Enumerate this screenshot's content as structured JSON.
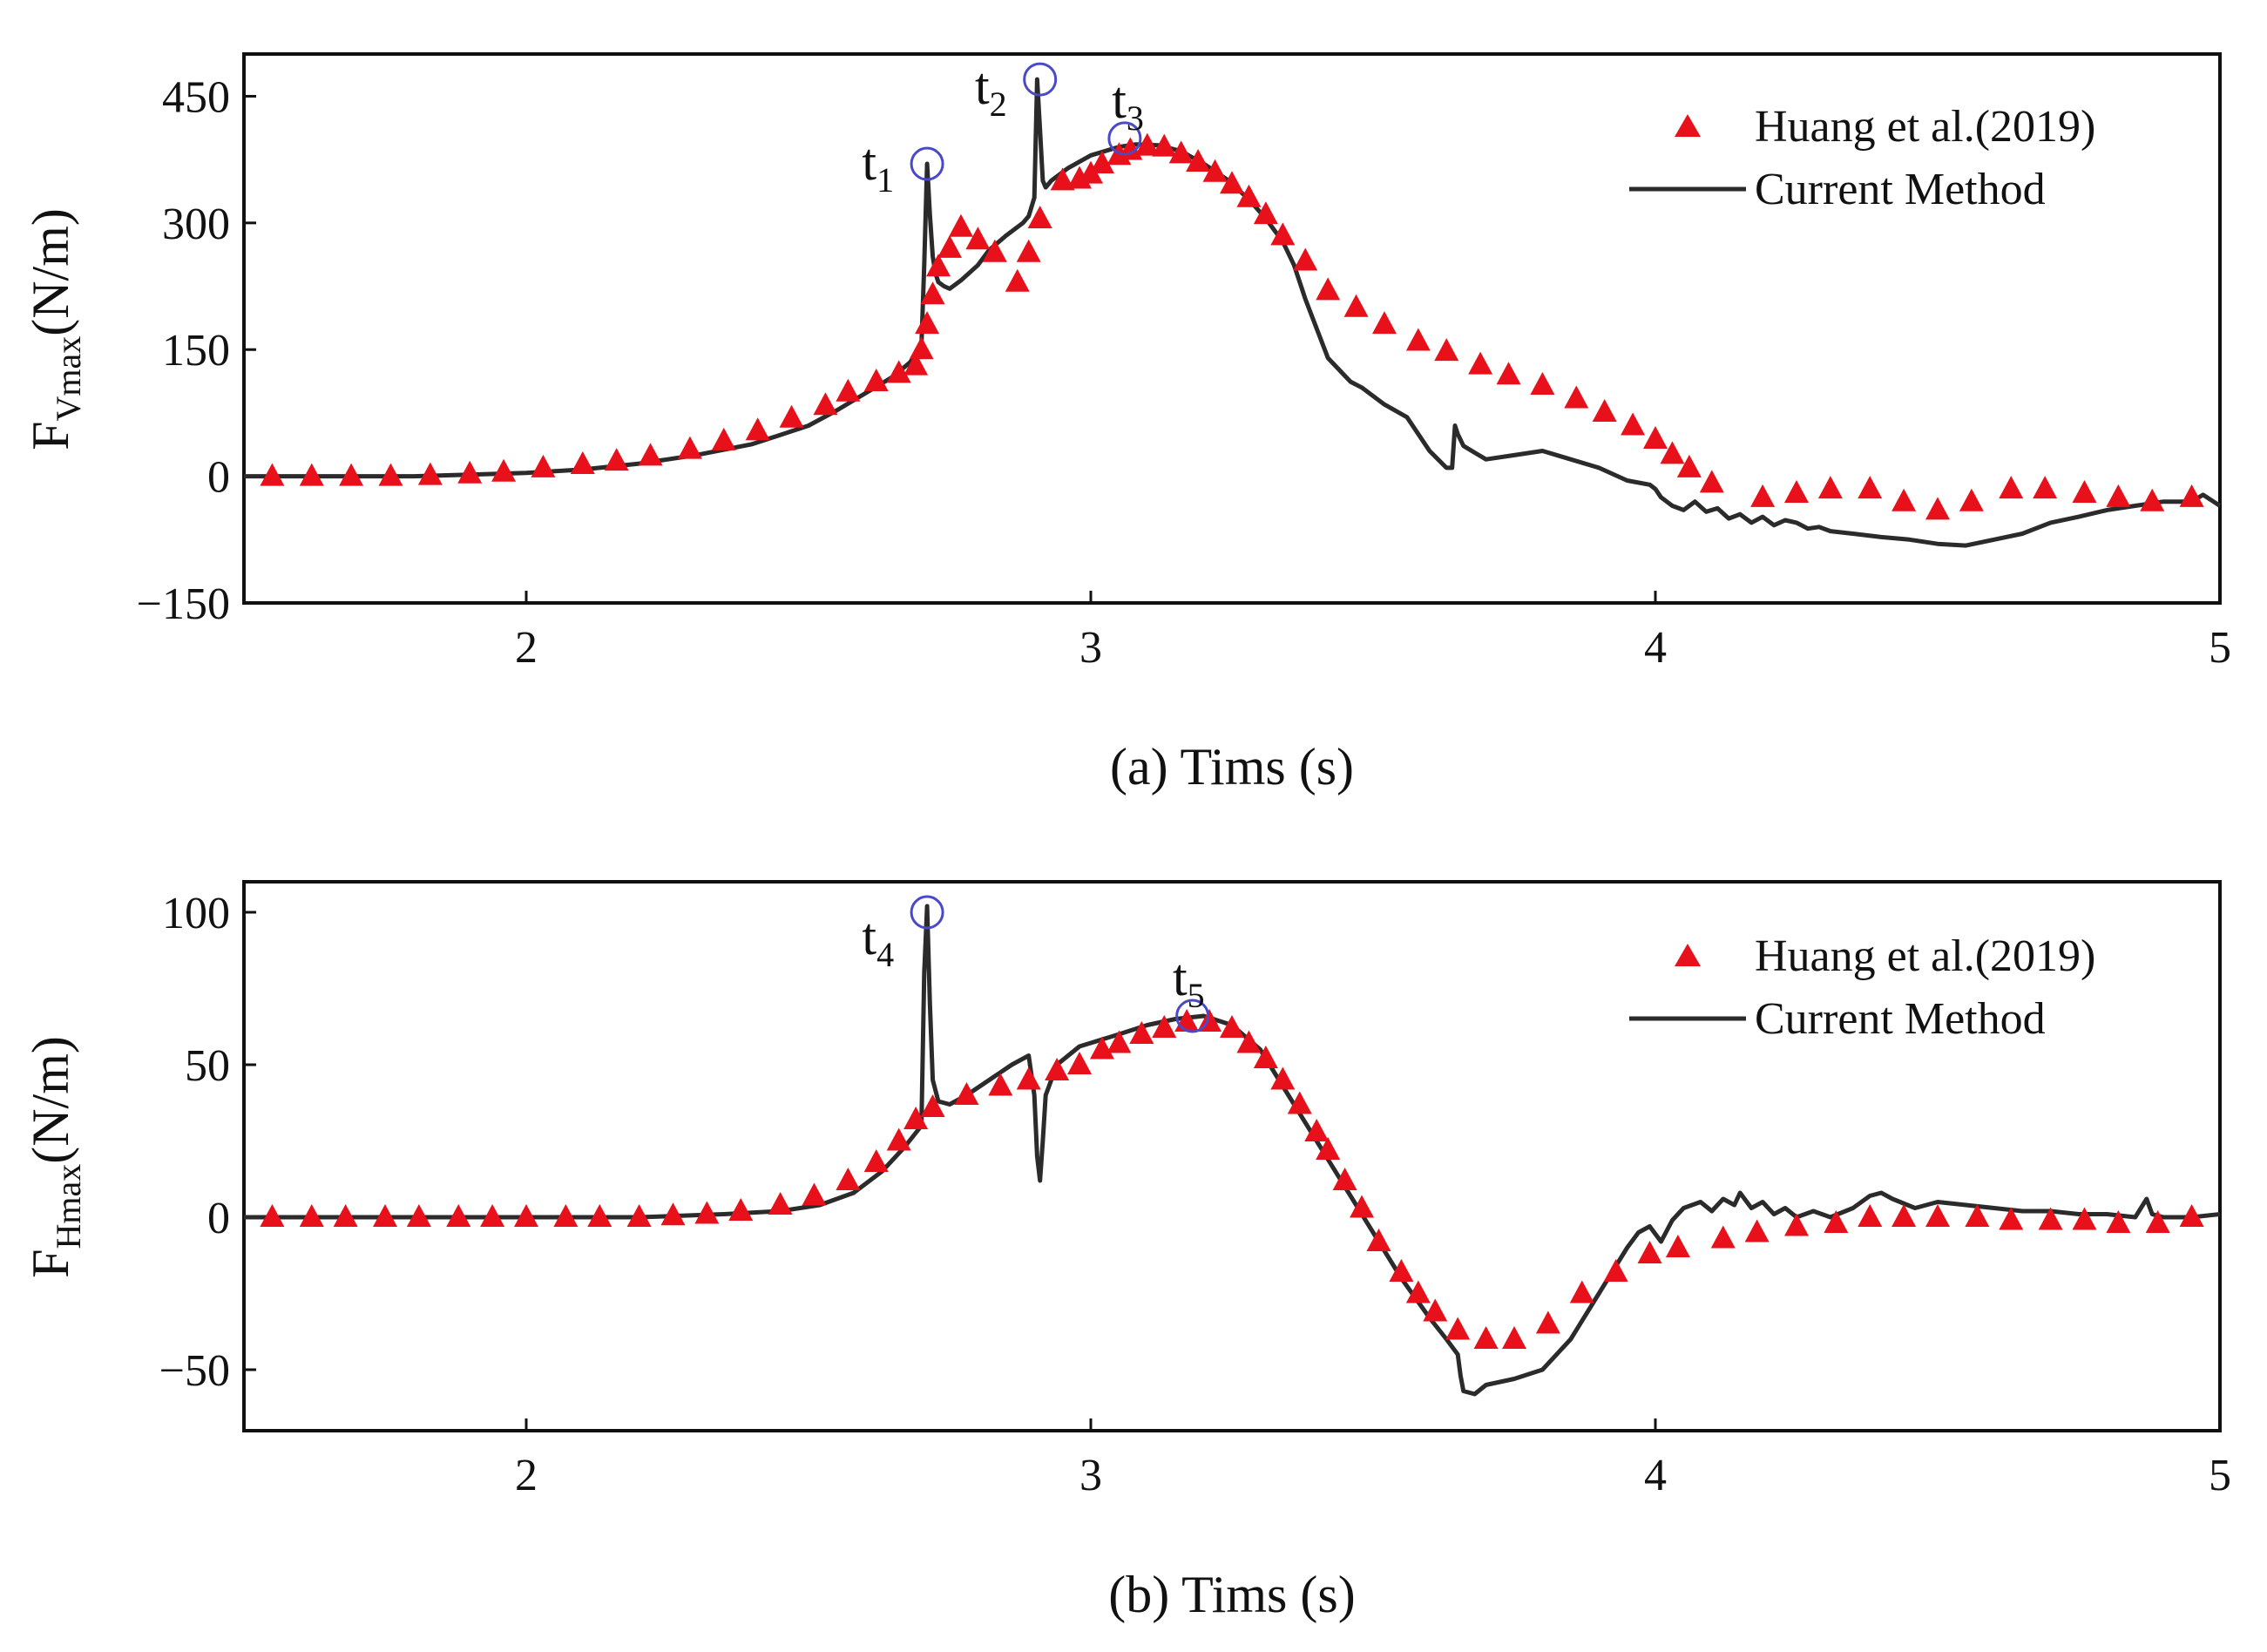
{
  "chart_data": [
    {
      "type": "line",
      "panel": "a",
      "caption": "(a) Tims (s)",
      "ylabel_main": "F",
      "ylabel_sub": "Vmax",
      "ylabel_unit": "(N/m)",
      "xlim": [
        1.5,
        5.0
      ],
      "ylim": [
        -150,
        500
      ],
      "xticks": [
        2,
        3,
        4,
        5
      ],
      "xtick_labels": [
        "2",
        "3",
        "4",
        "5"
      ],
      "yticks": [
        -150,
        0,
        150,
        300,
        450
      ],
      "ytick_labels": [
        "−150",
        "0",
        "150",
        "300",
        "450"
      ],
      "legend": {
        "position": "top-right",
        "markers_label": "Huang et al.(2019)",
        "line_label": "Current Method"
      },
      "series": [
        {
          "name": "Huang et al.(2019)",
          "style": "red-triangle",
          "x": [
            1.55,
            1.62,
            1.69,
            1.76,
            1.83,
            1.9,
            1.96,
            2.03,
            2.1,
            2.16,
            2.22,
            2.29,
            2.35,
            2.41,
            2.47,
            2.53,
            2.57,
            2.62,
            2.66,
            2.69,
            2.7,
            2.71,
            2.72,
            2.73,
            2.75,
            2.77,
            2.8,
            2.83,
            2.87,
            2.89,
            2.91,
            2.95,
            2.98,
            3.0,
            3.02,
            3.05,
            3.07,
            3.1,
            3.13,
            3.16,
            3.19,
            3.22,
            3.25,
            3.28,
            3.31,
            3.34,
            3.38,
            3.42,
            3.47,
            3.52,
            3.58,
            3.63,
            3.69,
            3.74,
            3.8,
            3.86,
            3.91,
            3.96,
            4.0,
            4.03,
            4.06,
            4.1,
            4.19,
            4.25,
            4.31,
            4.38,
            4.44,
            4.5,
            4.56,
            4.63,
            4.69,
            4.76,
            4.82,
            4.88,
            4.95
          ],
          "y": [
            0,
            0,
            0,
            0,
            1,
            3,
            5,
            10,
            14,
            18,
            24,
            32,
            42,
            54,
            69,
            84,
            100,
            112,
            122,
            131,
            150,
            180,
            215,
            248,
            270,
            295,
            280,
            265,
            230,
            265,
            305,
            350,
            352,
            358,
            370,
            380,
            386,
            391,
            390,
            382,
            372,
            360,
            346,
            330,
            310,
            285,
            255,
            220,
            200,
            180,
            160,
            148,
            132,
            120,
            108,
            92,
            76,
            60,
            44,
            26,
            10,
            -8,
            -25,
            -20,
            -15,
            -15,
            -30,
            -40,
            -30,
            -15,
            -15,
            -20,
            -25,
            -30,
            -25
          ]
        },
        {
          "name": "Current Method",
          "style": "black-line",
          "x": [
            1.5,
            1.6,
            1.7,
            1.8,
            1.9,
            2.0,
            2.1,
            2.2,
            2.3,
            2.4,
            2.5,
            2.55,
            2.6,
            2.65,
            2.68,
            2.7,
            2.705,
            2.71,
            2.715,
            2.72,
            2.725,
            2.73,
            2.74,
            2.75,
            2.77,
            2.8,
            2.82,
            2.85,
            2.88,
            2.89,
            2.9,
            2.905,
            2.91,
            2.915,
            2.92,
            2.93,
            2.96,
            3.0,
            3.05,
            3.08,
            3.12,
            3.16,
            3.2,
            3.24,
            3.28,
            3.31,
            3.34,
            3.36,
            3.38,
            3.42,
            3.46,
            3.48,
            3.52,
            3.56,
            3.6,
            3.63,
            3.64,
            3.645,
            3.65,
            3.66,
            3.68,
            3.7,
            3.75,
            3.8,
            3.85,
            3.9,
            3.95,
            3.99,
            4.0,
            4.01,
            4.03,
            4.05,
            4.07,
            4.09,
            4.11,
            4.13,
            4.15,
            4.17,
            4.19,
            4.21,
            4.23,
            4.25,
            4.27,
            4.29,
            4.31,
            4.35,
            4.4,
            4.45,
            4.5,
            4.55,
            4.6,
            4.65,
            4.7,
            4.75,
            4.8,
            4.85,
            4.9,
            4.95,
            4.97,
            5.0
          ],
          "y": [
            0,
            0,
            0,
            0,
            2,
            4,
            8,
            15,
            25,
            38,
            60,
            78,
            98,
            118,
            135,
            155,
            250,
            370,
            310,
            260,
            240,
            230,
            225,
            222,
            232,
            250,
            268,
            285,
            300,
            308,
            330,
            470,
            410,
            350,
            342,
            350,
            365,
            380,
            390,
            393,
            392,
            385,
            370,
            352,
            328,
            305,
            278,
            250,
            210,
            140,
            112,
            105,
            85,
            70,
            30,
            10,
            10,
            60,
            50,
            36,
            28,
            20,
            25,
            30,
            20,
            10,
            -5,
            -10,
            -15,
            -25,
            -35,
            -40,
            -30,
            -42,
            -38,
            -50,
            -45,
            -55,
            -48,
            -58,
            -52,
            -55,
            -62,
            -60,
            -65,
            -68,
            -72,
            -75,
            -80,
            -82,
            -75,
            -68,
            -55,
            -48,
            -40,
            -35,
            -30,
            -30,
            -22,
            -35
          ]
        }
      ],
      "annotations": [
        {
          "label": "t",
          "sub": "1",
          "x": 2.71,
          "y": 370
        },
        {
          "label": "t",
          "sub": "2",
          "x": 2.91,
          "y": 470
        },
        {
          "label": "t",
          "sub": "3",
          "x": 3.06,
          "y": 400
        }
      ]
    },
    {
      "type": "line",
      "panel": "b",
      "caption": "(b) Tims (s)",
      "ylabel_main": "F",
      "ylabel_sub": "Hmax",
      "ylabel_unit": "(N/m)",
      "xlim": [
        1.5,
        5.0
      ],
      "ylim": [
        -70,
        110
      ],
      "xticks": [
        2,
        3,
        4,
        5
      ],
      "xtick_labels": [
        "2",
        "3",
        "4",
        "5"
      ],
      "yticks": [
        -50,
        0,
        50,
        100
      ],
      "ytick_labels": [
        "−50",
        "0",
        "50",
        "100"
      ],
      "legend": {
        "position": "top-right",
        "markers_label": "Huang et al.(2019)",
        "line_label": "Current Method"
      },
      "series": [
        {
          "name": "Huang et al.(2019)",
          "style": "red-triangle",
          "x": [
            1.55,
            1.62,
            1.68,
            1.75,
            1.81,
            1.88,
            1.94,
            2.0,
            2.07,
            2.13,
            2.2,
            2.26,
            2.32,
            2.38,
            2.45,
            2.51,
            2.57,
            2.62,
            2.66,
            2.69,
            2.72,
            2.78,
            2.84,
            2.89,
            2.94,
            2.98,
            3.02,
            3.05,
            3.09,
            3.13,
            3.17,
            3.21,
            3.25,
            3.28,
            3.31,
            3.34,
            3.37,
            3.4,
            3.42,
            3.45,
            3.48,
            3.51,
            3.55,
            3.58,
            3.61,
            3.65,
            3.7,
            3.75,
            3.81,
            3.87,
            3.93,
            3.99,
            4.04,
            4.12,
            4.18,
            4.25,
            4.32,
            4.38,
            4.44,
            4.5,
            4.57,
            4.63,
            4.7,
            4.76,
            4.82,
            4.89,
            4.95
          ],
          "y": [
            0,
            0,
            0,
            0,
            0,
            0,
            0,
            0,
            0,
            0,
            0,
            0.5,
            1,
            2,
            4,
            7,
            12,
            18,
            25,
            32,
            36,
            40,
            43,
            45,
            48,
            50,
            55,
            57,
            60,
            62,
            64,
            64,
            62,
            57,
            52,
            45,
            37,
            28,
            22,
            12,
            3,
            -8,
            -18,
            -25,
            -31,
            -37,
            -40,
            -40,
            -35,
            -25,
            -18,
            -12,
            -10,
            -7,
            -5,
            -3,
            -2,
            0,
            0,
            0,
            0,
            -1,
            -1,
            -1,
            -2,
            -2,
            0
          ]
        },
        {
          "name": "Current Method",
          "style": "black-line",
          "x": [
            1.5,
            1.8,
            2.0,
            2.2,
            2.35,
            2.45,
            2.52,
            2.58,
            2.63,
            2.67,
            2.7,
            2.705,
            2.71,
            2.715,
            2.72,
            2.73,
            2.75,
            2.78,
            2.82,
            2.86,
            2.89,
            2.9,
            2.905,
            2.91,
            2.915,
            2.92,
            2.94,
            2.98,
            3.05,
            3.1,
            3.15,
            3.2,
            3.25,
            3.3,
            3.35,
            3.4,
            3.45,
            3.5,
            3.55,
            3.6,
            3.63,
            3.65,
            3.655,
            3.66,
            3.68,
            3.7,
            3.75,
            3.8,
            3.85,
            3.9,
            3.95,
            3.97,
            3.99,
            4.01,
            4.03,
            4.05,
            4.08,
            4.1,
            4.12,
            4.14,
            4.15,
            4.17,
            4.19,
            4.21,
            4.23,
            4.25,
            4.28,
            4.31,
            4.35,
            4.38,
            4.4,
            4.42,
            4.46,
            4.5,
            4.55,
            4.6,
            4.65,
            4.7,
            4.75,
            4.8,
            4.85,
            4.86,
            4.87,
            4.88,
            4.9,
            4.95,
            5.0
          ],
          "y": [
            0,
            0,
            0,
            0,
            1,
            2,
            4,
            8,
            15,
            23,
            30,
            80,
            102,
            70,
            45,
            38,
            37,
            40,
            45,
            50,
            53,
            40,
            20,
            12,
            25,
            40,
            50,
            56,
            60,
            63,
            65,
            66,
            63,
            55,
            40,
            25,
            10,
            -5,
            -20,
            -33,
            -40,
            -45,
            -52,
            -57,
            -58,
            -55,
            -53,
            -50,
            -40,
            -25,
            -10,
            -5,
            -3,
            -8,
            -1,
            3,
            5,
            2,
            6,
            4,
            8,
            3,
            5,
            1,
            3,
            0,
            2,
            0,
            3,
            7,
            8,
            6,
            3,
            5,
            4,
            3,
            2,
            2,
            1,
            1,
            0,
            3,
            6,
            1,
            0,
            0,
            1
          ]
        }
      ],
      "annotations": [
        {
          "label": "t",
          "sub": "4",
          "x": 2.71,
          "y": 100
        },
        {
          "label": "t",
          "sub": "5",
          "x": 3.18,
          "y": 66
        }
      ]
    }
  ]
}
